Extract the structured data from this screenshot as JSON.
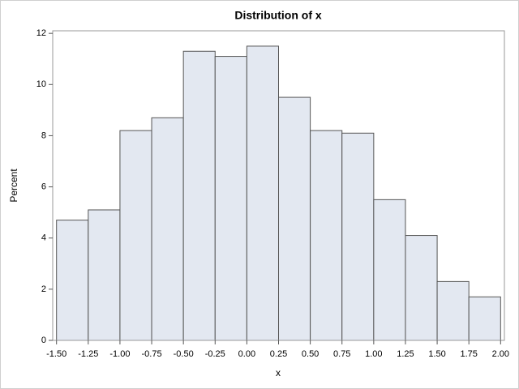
{
  "chart_data": {
    "type": "histogram",
    "title": "Distribution of x",
    "x_label": "x",
    "y_label": "Percent",
    "bins": [
      -1.5,
      -1.25,
      -1.0,
      -0.75,
      -0.5,
      -0.25,
      0.0,
      0.25,
      0.5,
      0.75,
      1.0,
      1.25,
      1.5,
      1.75,
      2.0
    ],
    "values": [
      4.7,
      5.1,
      8.2,
      8.7,
      11.3,
      11.1,
      11.5,
      9.5,
      8.2,
      8.1,
      5.5,
      4.1,
      2.3,
      1.7
    ],
    "color": "#e3e8f1",
    "xlim": [
      -1.53,
      2.03
    ],
    "ylim": [
      0,
      12.1
    ],
    "xticks": [
      {
        "value": -1.5,
        "label": "-1.50"
      },
      {
        "value": -1.25,
        "label": "-1.25"
      },
      {
        "value": -1.0,
        "label": "-1.00"
      },
      {
        "value": -0.75,
        "label": "-0.75"
      },
      {
        "value": -0.5,
        "label": "-0.50"
      },
      {
        "value": -0.25,
        "label": "-0.25"
      },
      {
        "value": 0.0,
        "label": "0.00"
      },
      {
        "value": 0.25,
        "label": "0.25"
      },
      {
        "value": 0.5,
        "label": "0.50"
      },
      {
        "value": 0.75,
        "label": "0.75"
      },
      {
        "value": 1.0,
        "label": "1.00"
      },
      {
        "value": 1.25,
        "label": "1.25"
      },
      {
        "value": 1.5,
        "label": "1.50"
      },
      {
        "value": 1.75,
        "label": "1.75"
      },
      {
        "value": 2.0,
        "label": "2.00"
      }
    ],
    "yticks": [
      0,
      2,
      4,
      6,
      8,
      10,
      12
    ]
  }
}
